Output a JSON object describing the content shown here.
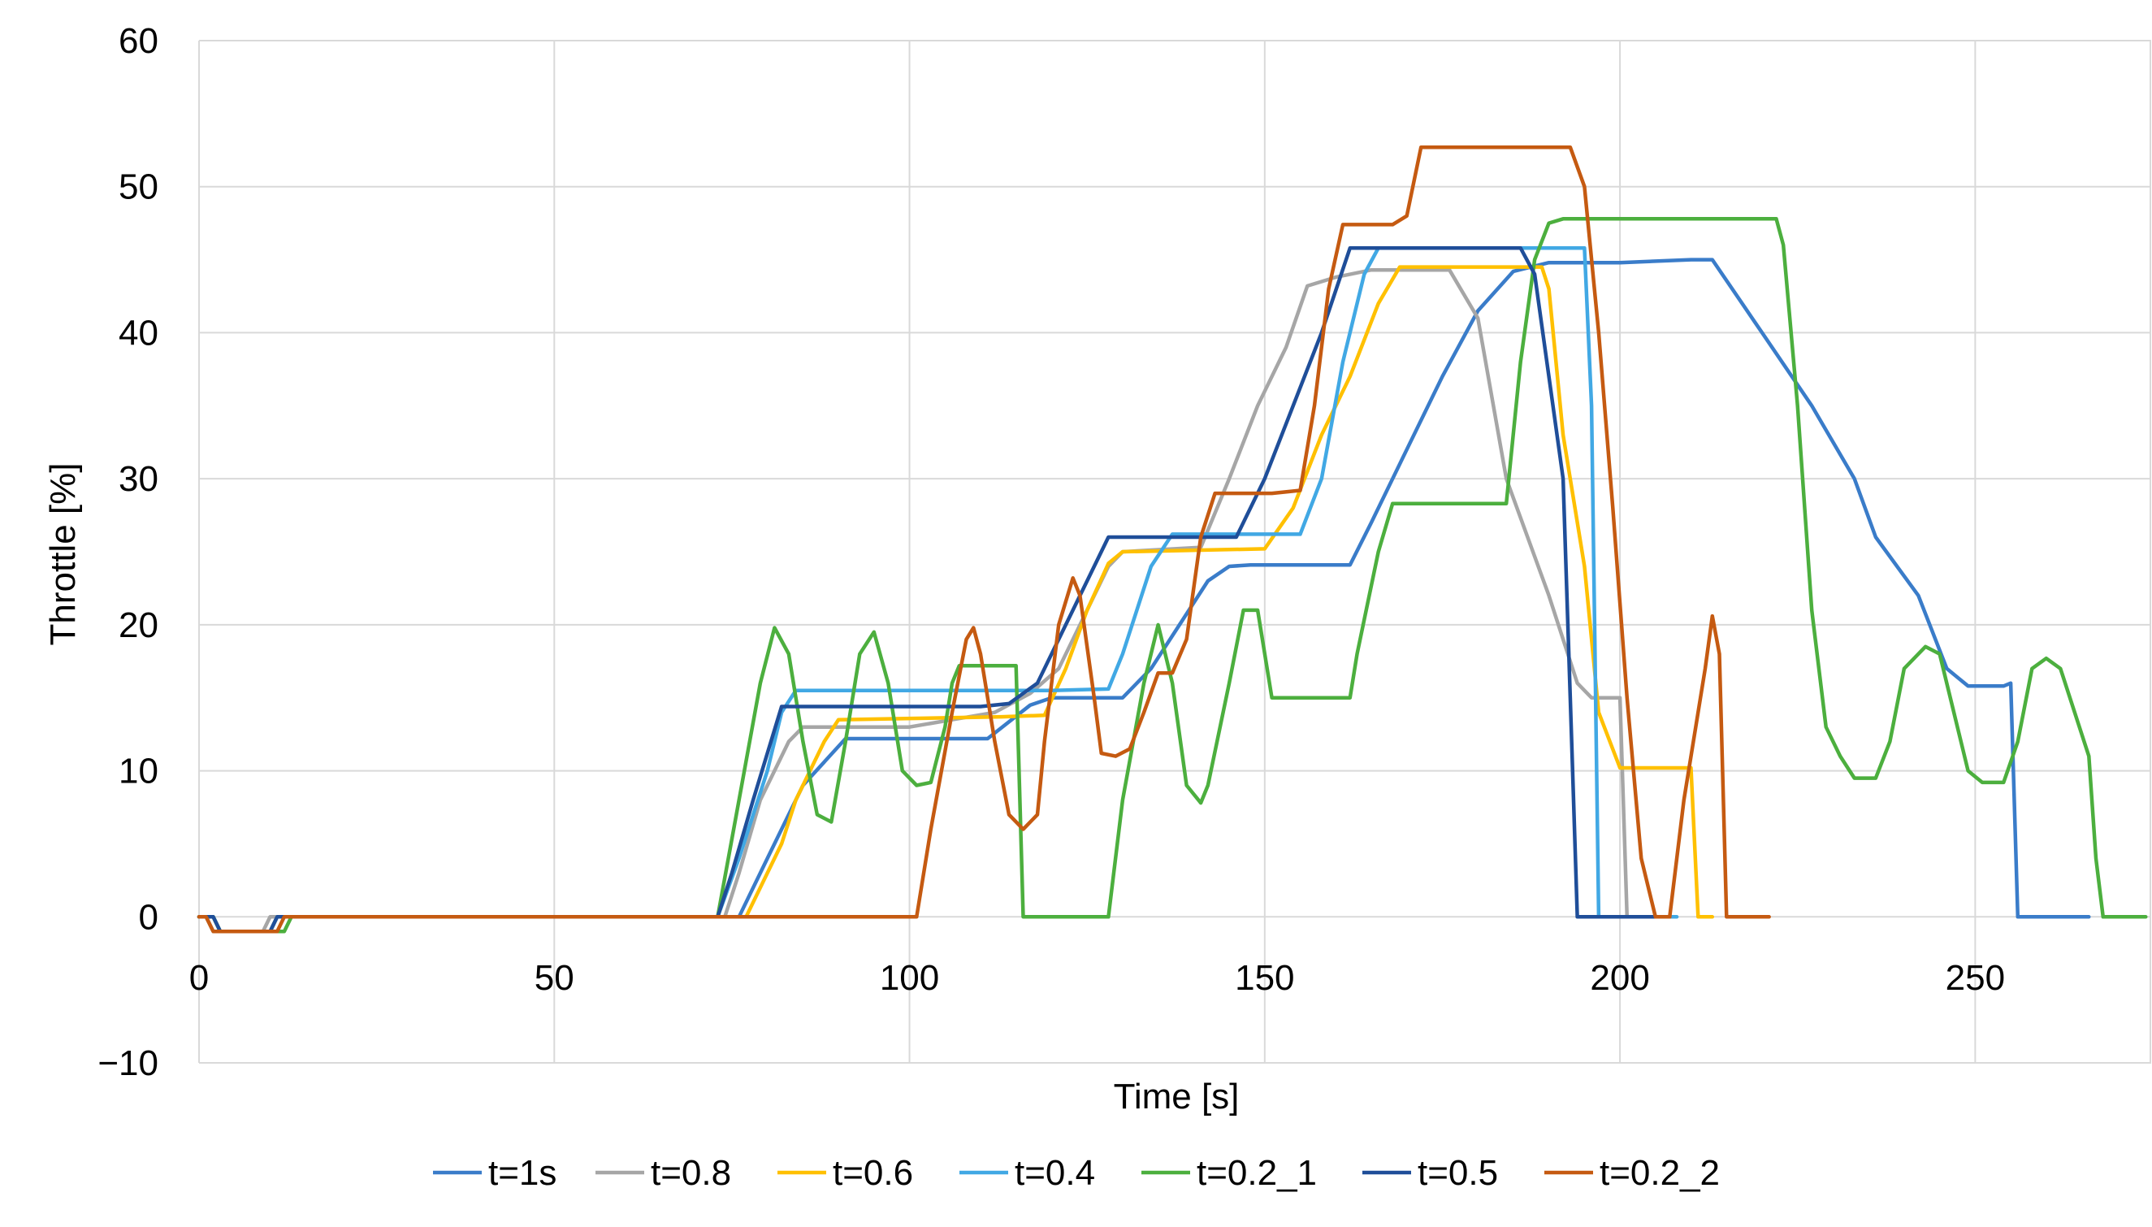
{
  "chart_data": {
    "type": "line",
    "title": "",
    "xlabel": "Time [s]",
    "ylabel": "Throttle [%]",
    "xlim": [
      0,
      275
    ],
    "ylim": [
      -10,
      60
    ],
    "xticks": [
      "0",
      "50",
      "100",
      "150",
      "200",
      "250"
    ],
    "yticks": [
      "−10",
      "0",
      "10",
      "20",
      "30",
      "40",
      "50",
      "60"
    ],
    "grid": true,
    "legend": "bottom",
    "series": [
      {
        "name": "t=1s",
        "color": "#3A7CC9",
        "points": [
          [
            0,
            0
          ],
          [
            2,
            0
          ],
          [
            3,
            -1
          ],
          [
            10,
            -1
          ],
          [
            11,
            0
          ],
          [
            74,
            0
          ],
          [
            76,
            0
          ],
          [
            80,
            4
          ],
          [
            85,
            9
          ],
          [
            91,
            12.2
          ],
          [
            111,
            12.2
          ],
          [
            117,
            14.5
          ],
          [
            120,
            15
          ],
          [
            130,
            15
          ],
          [
            134,
            17
          ],
          [
            138,
            20
          ],
          [
            142,
            23
          ],
          [
            145,
            24
          ],
          [
            148,
            24.1
          ],
          [
            162,
            24.1
          ],
          [
            165,
            27
          ],
          [
            170,
            32
          ],
          [
            175,
            37
          ],
          [
            180,
            41.5
          ],
          [
            185,
            44.2
          ],
          [
            190,
            44.8
          ],
          [
            200,
            44.8
          ],
          [
            210,
            45
          ],
          [
            213,
            45
          ],
          [
            220,
            40
          ],
          [
            227,
            35
          ],
          [
            233,
            30
          ],
          [
            236,
            26
          ],
          [
            242,
            22
          ],
          [
            246,
            17
          ],
          [
            249,
            15.8
          ],
          [
            254,
            15.8
          ],
          [
            255,
            16
          ],
          [
            256,
            0
          ],
          [
            262,
            0
          ],
          [
            266,
            0
          ]
        ]
      },
      {
        "name": "t=0.8",
        "color": "#A6A6A6",
        "points": [
          [
            0,
            0
          ],
          [
            1,
            0
          ],
          [
            2,
            -1
          ],
          [
            9,
            -1
          ],
          [
            10,
            0
          ],
          [
            74,
            0
          ],
          [
            76,
            3
          ],
          [
            79,
            8
          ],
          [
            83,
            12
          ],
          [
            85,
            13
          ],
          [
            100,
            13
          ],
          [
            106,
            13.5
          ],
          [
            112,
            14
          ],
          [
            117,
            15.3
          ],
          [
            121,
            17
          ],
          [
            125,
            21
          ],
          [
            128,
            24
          ],
          [
            130,
            25
          ],
          [
            141,
            25.3
          ],
          [
            145,
            30
          ],
          [
            149,
            35
          ],
          [
            153,
            39
          ],
          [
            156,
            43.2
          ],
          [
            160,
            43.8
          ],
          [
            165,
            44.3
          ],
          [
            176,
            44.3
          ],
          [
            180,
            41
          ],
          [
            184,
            30
          ],
          [
            187,
            26
          ],
          [
            190,
            22
          ],
          [
            194,
            16
          ],
          [
            196,
            15
          ],
          [
            200,
            15
          ],
          [
            201,
            0
          ],
          [
            203,
            0
          ]
        ]
      },
      {
        "name": "t=0.6",
        "color": "#FFC000",
        "points": [
          [
            0,
            0
          ],
          [
            2,
            0
          ],
          [
            3,
            -1
          ],
          [
            10,
            -1
          ],
          [
            11,
            0
          ],
          [
            77,
            0
          ],
          [
            79,
            2
          ],
          [
            82,
            5
          ],
          [
            84,
            8
          ],
          [
            88,
            12
          ],
          [
            90,
            13.5
          ],
          [
            113,
            13.7
          ],
          [
            119,
            13.8
          ],
          [
            122,
            17
          ],
          [
            125,
            21
          ],
          [
            128,
            24.2
          ],
          [
            130,
            25
          ],
          [
            150,
            25.2
          ],
          [
            154,
            28
          ],
          [
            158,
            33
          ],
          [
            162,
            37
          ],
          [
            166,
            42
          ],
          [
            169,
            44.5
          ],
          [
            189,
            44.5
          ],
          [
            190,
            43
          ],
          [
            192,
            33
          ],
          [
            195,
            24
          ],
          [
            197,
            14
          ],
          [
            200,
            10.2
          ],
          [
            206,
            10.2
          ],
          [
            210,
            10.2
          ],
          [
            211,
            0
          ],
          [
            213,
            0
          ]
        ]
      },
      {
        "name": "t=0.4",
        "color": "#41A8E4",
        "points": [
          [
            0,
            0
          ],
          [
            2,
            0
          ],
          [
            3,
            -1
          ],
          [
            10,
            -1
          ],
          [
            11,
            0
          ],
          [
            73,
            0
          ],
          [
            76,
            4
          ],
          [
            80,
            10
          ],
          [
            82,
            14
          ],
          [
            84,
            15.5
          ],
          [
            120,
            15.5
          ],
          [
            128,
            15.6
          ],
          [
            130,
            18
          ],
          [
            134,
            24
          ],
          [
            137,
            26.2
          ],
          [
            155,
            26.2
          ],
          [
            158,
            30
          ],
          [
            161,
            38
          ],
          [
            164,
            44
          ],
          [
            166,
            45.8
          ],
          [
            195,
            45.8
          ],
          [
            196,
            35
          ],
          [
            197,
            0
          ],
          [
            204,
            0
          ],
          [
            208,
            0
          ]
        ]
      },
      {
        "name": "t=0.2_1",
        "color": "#4CAF3E",
        "points": [
          [
            0,
            0
          ],
          [
            2,
            0
          ],
          [
            3,
            -1
          ],
          [
            12,
            -1
          ],
          [
            13,
            0
          ],
          [
            73,
            0
          ],
          [
            76,
            8
          ],
          [
            79,
            16
          ],
          [
            81,
            19.8
          ],
          [
            83,
            18
          ],
          [
            85,
            12
          ],
          [
            87,
            7
          ],
          [
            89,
            6.5
          ],
          [
            91,
            12
          ],
          [
            93,
            18
          ],
          [
            95,
            19.5
          ],
          [
            97,
            16
          ],
          [
            99,
            10
          ],
          [
            101,
            9
          ],
          [
            103,
            9.2
          ],
          [
            105,
            13
          ],
          [
            106,
            16
          ],
          [
            107,
            17.2
          ],
          [
            115,
            17.2
          ],
          [
            116,
            0
          ],
          [
            128,
            0
          ],
          [
            130,
            8
          ],
          [
            133,
            16
          ],
          [
            135,
            20
          ],
          [
            137,
            16
          ],
          [
            139,
            9
          ],
          [
            141,
            7.8
          ],
          [
            142,
            9
          ],
          [
            145,
            16
          ],
          [
            147,
            21
          ],
          [
            149,
            21
          ],
          [
            151,
            15
          ],
          [
            162,
            15
          ],
          [
            163,
            18
          ],
          [
            166,
            25
          ],
          [
            168,
            28.3
          ],
          [
            184,
            28.3
          ],
          [
            186,
            38
          ],
          [
            188,
            45
          ],
          [
            190,
            47.5
          ],
          [
            192,
            47.8
          ],
          [
            222,
            47.8
          ],
          [
            223,
            46
          ],
          [
            225,
            35
          ],
          [
            227,
            21
          ],
          [
            229,
            13
          ],
          [
            231,
            11
          ],
          [
            233,
            9.5
          ],
          [
            236,
            9.5
          ],
          [
            238,
            12
          ],
          [
            240,
            17
          ],
          [
            243,
            18.5
          ],
          [
            245,
            18
          ],
          [
            247,
            14
          ],
          [
            249,
            10
          ],
          [
            251,
            9.2
          ],
          [
            254,
            9.2
          ],
          [
            256,
            12
          ],
          [
            258,
            17
          ],
          [
            260,
            17.7
          ],
          [
            262,
            17
          ],
          [
            264,
            14
          ],
          [
            266,
            11
          ],
          [
            267,
            4
          ],
          [
            268,
            0
          ],
          [
            274,
            0
          ]
        ]
      },
      {
        "name": "t=0.5",
        "color": "#1F4E99",
        "points": [
          [
            0,
            0
          ],
          [
            2,
            0
          ],
          [
            3,
            -1
          ],
          [
            10,
            -1
          ],
          [
            11,
            0
          ],
          [
            73,
            0
          ],
          [
            75,
            3
          ],
          [
            78,
            8
          ],
          [
            82,
            14.4
          ],
          [
            110,
            14.4
          ],
          [
            114,
            14.6
          ],
          [
            118,
            16
          ],
          [
            122,
            20
          ],
          [
            126,
            24
          ],
          [
            128,
            26
          ],
          [
            146,
            26
          ],
          [
            150,
            30
          ],
          [
            154,
            35
          ],
          [
            158,
            40
          ],
          [
            162,
            45.8
          ],
          [
            175,
            45.8
          ],
          [
            186,
            45.8
          ],
          [
            188,
            44
          ],
          [
            190,
            37
          ],
          [
            192,
            30
          ],
          [
            193,
            15
          ],
          [
            194,
            0
          ],
          [
            200,
            0
          ],
          [
            207,
            0
          ]
        ]
      },
      {
        "name": "t=0.2_2",
        "color": "#C55A11",
        "points": [
          [
            0,
            0
          ],
          [
            1,
            0
          ],
          [
            2,
            -1
          ],
          [
            11,
            -1
          ],
          [
            12,
            0
          ],
          [
            101,
            0
          ],
          [
            103,
            6
          ],
          [
            106,
            14
          ],
          [
            108,
            19
          ],
          [
            109,
            19.8
          ],
          [
            110,
            18
          ],
          [
            112,
            12
          ],
          [
            114,
            7
          ],
          [
            116,
            6
          ],
          [
            118,
            7
          ],
          [
            119,
            12
          ],
          [
            121,
            20
          ],
          [
            123,
            23.2
          ],
          [
            124,
            22
          ],
          [
            126,
            15
          ],
          [
            127,
            11.2
          ],
          [
            129,
            11
          ],
          [
            131,
            11.5
          ],
          [
            133,
            14
          ],
          [
            135,
            16.7
          ],
          [
            137,
            16.7
          ],
          [
            139,
            19
          ],
          [
            141,
            26
          ],
          [
            143,
            29
          ],
          [
            151,
            29
          ],
          [
            155,
            29.2
          ],
          [
            157,
            35
          ],
          [
            159,
            43
          ],
          [
            161,
            47.4
          ],
          [
            168,
            47.4
          ],
          [
            170,
            48
          ],
          [
            172,
            52.7
          ],
          [
            178,
            52.7
          ],
          [
            193,
            52.7
          ],
          [
            195,
            50
          ],
          [
            197,
            40
          ],
          [
            199,
            28
          ],
          [
            201,
            15
          ],
          [
            203,
            4
          ],
          [
            205,
            0
          ],
          [
            207,
            0
          ],
          [
            209,
            8
          ],
          [
            212,
            17
          ],
          [
            213,
            20.6
          ],
          [
            214,
            18
          ],
          [
            215,
            0
          ],
          [
            221,
            0
          ]
        ]
      }
    ]
  }
}
